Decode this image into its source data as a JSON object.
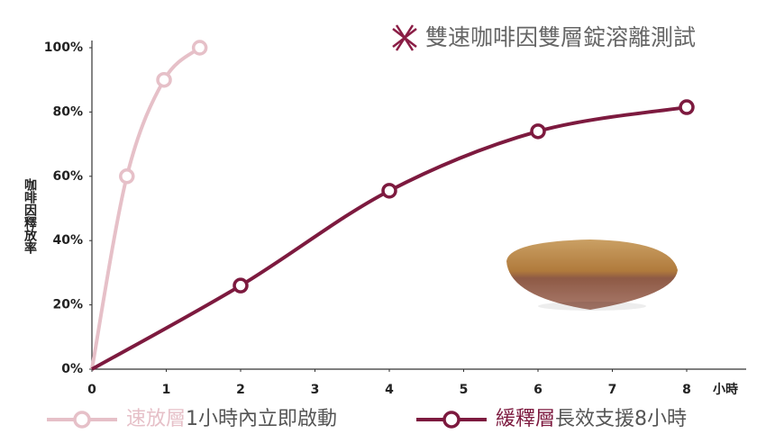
{
  "chart_data": {
    "type": "line",
    "title": "雙速咖啡因雙層錠溶離測試",
    "y_label": "咖啡因釋放率",
    "x_label": "小時",
    "xlim": [
      0,
      8.8
    ],
    "xticks": [
      0,
      1,
      2,
      3,
      4,
      5,
      6,
      7,
      8
    ],
    "ylim": [
      0,
      100
    ],
    "yticks": [
      {
        "value": 0,
        "label": "0%"
      },
      {
        "value": 20,
        "label": "20%"
      },
      {
        "value": 40,
        "label": "40%"
      },
      {
        "value": 60,
        "label": "60%"
      },
      {
        "value": 80,
        "label": "80%"
      },
      {
        "value": 100,
        "label": "100%"
      }
    ],
    "grid": false,
    "series": [
      {
        "name": "速放層",
        "legend_text": "1小時內立即啟動",
        "color": "#e6c0c8",
        "x": [
          0,
          0.47,
          0.97,
          1.45
        ],
        "values": [
          0,
          60,
          90,
          100
        ]
      },
      {
        "name": "緩釋層",
        "legend_text": "長效支援8小時",
        "color": "#7d1a3f",
        "x": [
          0,
          2,
          4,
          6,
          8
        ],
        "values": [
          0,
          26,
          55.5,
          74,
          81.5
        ]
      }
    ]
  }
}
